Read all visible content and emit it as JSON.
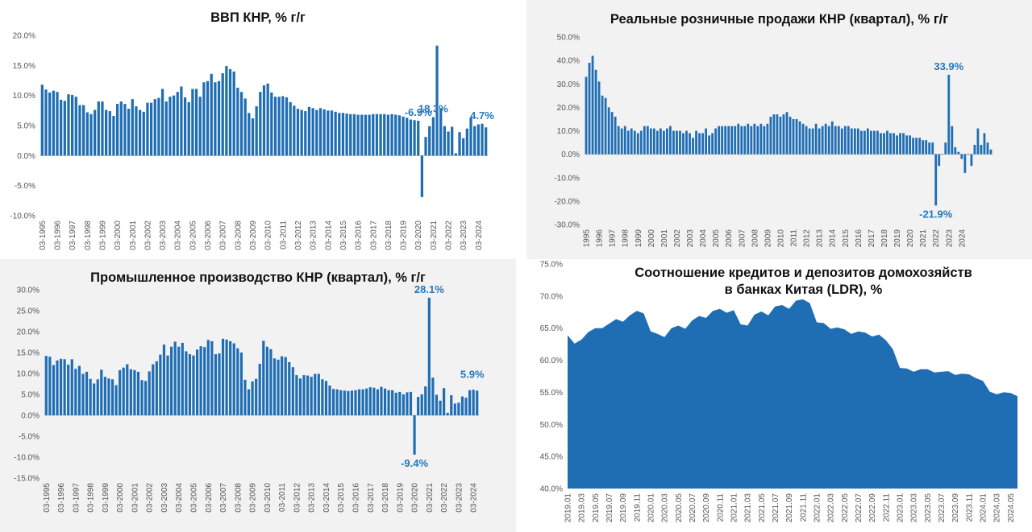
{
  "chart_data": [
    {
      "id": "gdp",
      "type": "bar",
      "title": "ВВП КНР, % г/г",
      "color": "#1f6eb4",
      "ylim": [
        -10,
        20
      ],
      "yticks": [
        -10,
        -5,
        0,
        5,
        10,
        15,
        20
      ],
      "ytick_format": "percent1",
      "xtick_labels": [
        "03-1995",
        "03-1996",
        "03-1997",
        "03-1998",
        "03-1999",
        "03-2000",
        "03-2001",
        "03-2002",
        "03-2003",
        "03-2004",
        "03-2005",
        "03-2006",
        "03-2007",
        "03-2008",
        "03-2009",
        "03-2010",
        "03-2011",
        "03-2012",
        "03-2013",
        "03-2014",
        "03-2015",
        "03-2016",
        "03-2017",
        "03-2018",
        "03-2019",
        "03-2020",
        "03-2021",
        "03-2022",
        "03-2023",
        "03-2024"
      ],
      "values": [
        11.8,
        11.0,
        10.5,
        10.8,
        10.6,
        9.3,
        9.1,
        10.2,
        10.1,
        9.8,
        8.4,
        8.4,
        7.2,
        6.9,
        7.6,
        9.0,
        9.0,
        7.6,
        7.4,
        6.6,
        8.6,
        9.0,
        8.6,
        7.8,
        9.4,
        8.2,
        7.6,
        7.3,
        8.8,
        8.8,
        9.4,
        9.6,
        11.1,
        9.0,
        9.8,
        10.0,
        10.6,
        11.5,
        9.7,
        8.9,
        11.1,
        11.1,
        9.8,
        12.2,
        12.4,
        13.6,
        12.2,
        12.4,
        13.7,
        14.9,
        14.4,
        14.0,
        11.3,
        10.6,
        9.5,
        7.1,
        6.2,
        8.2,
        10.6,
        11.7,
        12.0,
        10.5,
        9.8,
        9.8,
        9.9,
        9.7,
        8.9,
        8.3,
        7.8,
        7.6,
        7.4,
        8.1,
        7.9,
        7.6,
        7.9,
        7.7,
        7.5,
        7.5,
        7.3,
        7.1,
        7.1,
        7.0,
        6.9,
        6.9,
        6.8,
        6.8,
        6.8,
        6.8,
        6.9,
        6.9,
        6.9,
        6.9,
        6.8,
        6.9,
        6.8,
        6.7,
        6.5,
        6.3,
        6.0,
        5.9,
        5.8,
        -6.9,
        3.1,
        4.9,
        6.4,
        18.3,
        7.9,
        4.9,
        4.0,
        4.8,
        0.4,
        3.9,
        2.9,
        4.5,
        6.3,
        4.9,
        5.2,
        5.3,
        4.7
      ],
      "annotations": [
        {
          "text": "18.3%",
          "x_index": 104
        },
        {
          "text": "-6.9%",
          "x_index": 100
        },
        {
          "text": "4.7%",
          "x_index": 117
        }
      ]
    },
    {
      "id": "retail",
      "type": "bar",
      "title": "Реальные розничные продажи КНР (квартал), % г/г",
      "color": "#1f6eb4",
      "ylim": [
        -30,
        50
      ],
      "yticks": [
        -30,
        -20,
        -10,
        0,
        10,
        20,
        30,
        40,
        50
      ],
      "ytick_format": "percent1",
      "xtick_labels": [
        "1995",
        "1996",
        "1997",
        "1998",
        "1999",
        "2000",
        "2001",
        "2002",
        "2003",
        "2004",
        "2005",
        "2006",
        "2007",
        "2008",
        "2009",
        "2010",
        "2011",
        "2012",
        "2013",
        "2014",
        "2015",
        "2016",
        "2017",
        "2018",
        "2019",
        "2020",
        "2021",
        "2022",
        "2023",
        "2024"
      ],
      "values": [
        33,
        39,
        42,
        36,
        31,
        25,
        24,
        20,
        18,
        16,
        12,
        11,
        12,
        10,
        11,
        10,
        9,
        10,
        12,
        12,
        11,
        11,
        10,
        11,
        10,
        11,
        12,
        10,
        10,
        10,
        9,
        10,
        9,
        7,
        10,
        9,
        9,
        11,
        8,
        9,
        11,
        12,
        12,
        12,
        12,
        12,
        12,
        13,
        12,
        12,
        13,
        12,
        13,
        12,
        13,
        12,
        13,
        16,
        17,
        17,
        16,
        17,
        18,
        16,
        15,
        15,
        14,
        13,
        12,
        11,
        11,
        13,
        11,
        12,
        13,
        12,
        14,
        12,
        12,
        11,
        12,
        12,
        11,
        11,
        11,
        10,
        10,
        11,
        10,
        10,
        10,
        9,
        9,
        10,
        9,
        9,
        8,
        9,
        9,
        8,
        8,
        7,
        7,
        7,
        6,
        6,
        5,
        5,
        -21.9,
        -5,
        0,
        5,
        33.9,
        12,
        3,
        1,
        -2,
        -8,
        0,
        -5,
        4,
        11,
        4,
        9,
        5,
        2
      ],
      "annotations": [
        {
          "text": "33.9%",
          "x_index": 112
        },
        {
          "text": "-21.9%",
          "x_index": 108
        }
      ]
    },
    {
      "id": "industry",
      "type": "bar",
      "title": "Промышленное производство КНР (квартал), % г/г",
      "color": "#1f6eb4",
      "ylim": [
        -15,
        30
      ],
      "yticks": [
        -15,
        -10,
        -5,
        0,
        5,
        10,
        15,
        20,
        25,
        30
      ],
      "ytick_format": "percent1",
      "xtick_labels": [
        "03-1995",
        "03-1996",
        "03-1997",
        "03-1998",
        "03-1999",
        "03-2000",
        "03-2001",
        "03-2002",
        "03-2003",
        "03-2004",
        "03-2005",
        "03-2006",
        "03-2007",
        "03-2008",
        "03-2009",
        "03-2010",
        "03-2011",
        "03-2012",
        "03-2013",
        "03-2014",
        "03-2015",
        "03-2016",
        "03-2017",
        "03-2018",
        "03-2019",
        "03-2020",
        "03-2021",
        "03-2022",
        "03-2023",
        "03-2024"
      ],
      "values": [
        14.2,
        14.0,
        12.0,
        13.1,
        13.5,
        13.4,
        12.1,
        13.4,
        11.1,
        11.8,
        9.9,
        10.4,
        8.7,
        7.6,
        8.6,
        10.9,
        9.2,
        8.8,
        8.6,
        7.2,
        10.8,
        11.4,
        12.2,
        11.0,
        10.8,
        10.4,
        8.4,
        8.2,
        10.5,
        12.2,
        12.9,
        14.5,
        16.9,
        14.3,
        16.4,
        17.6,
        16.4,
        17.3,
        15.3,
        14.6,
        14.3,
        15.7,
        16.5,
        16.3,
        18.0,
        17.7,
        14.6,
        14.8,
        18.3,
        18.1,
        17.7,
        17.2,
        16.0,
        15.0,
        8.5,
        6.2,
        8.1,
        8.7,
        12.3,
        17.8,
        16.4,
        15.8,
        13.6,
        13.3,
        14.1,
        13.9,
        12.7,
        11.5,
        9.6,
        8.8,
        9.6,
        9.5,
        9.2,
        9.9,
        9.9,
        8.6,
        8.2,
        7.1,
        6.3,
        6.2,
        6.0,
        5.9,
        5.8,
        5.9,
        6.0,
        6.2,
        6.2,
        6.4,
        6.7,
        6.6,
        6.2,
        6.8,
        6.4,
        6.0,
        6.0,
        5.4,
        5.6,
        5.0,
        5.5,
        5.6,
        -9.4,
        4.4,
        5.0,
        6.9,
        28.1,
        9.0,
        4.9,
        3.5,
        6.5,
        0.6,
        4.8,
        2.8,
        3.0,
        4.5,
        4.2,
        6.0,
        6.1,
        5.9
      ],
      "annotations": [
        {
          "text": "28.1%",
          "x_index": 104
        },
        {
          "text": "-9.4%",
          "x_index": 100
        },
        {
          "text": "5.9%",
          "x_index": 117
        }
      ]
    },
    {
      "id": "ldr",
      "type": "area",
      "title": "Соотношение кредитов и депозитов домохозяйств\nв банках Китая (LDR), %",
      "color": "#1f6eb4",
      "ylim": [
        40,
        75
      ],
      "yticks": [
        40,
        45,
        50,
        55,
        60,
        65,
        70,
        75
      ],
      "ytick_format": "percent1",
      "x": [
        "2019.01",
        "2019.02",
        "2019.03",
        "2019.04",
        "2019.05",
        "2019.06",
        "2019.07",
        "2019.08",
        "2019.09",
        "2019.10",
        "2019.11",
        "2019.12",
        "2020.01",
        "2020.02",
        "2020.03",
        "2020.04",
        "2020.05",
        "2020.06",
        "2020.07",
        "2020.08",
        "2020.09",
        "2020.10",
        "2020.11",
        "2020.12",
        "2021.01",
        "2021.02",
        "2021.03",
        "2021.04",
        "2021.05",
        "2021.06",
        "2021.07",
        "2021.08",
        "2021.09",
        "2021.10",
        "2021.11",
        "2021.12",
        "2022.01",
        "2022.02",
        "2022.03",
        "2022.04",
        "2022.05",
        "2022.06",
        "2022.07",
        "2022.08",
        "2022.09",
        "2022.10",
        "2022.11",
        "2022.12",
        "2023.01",
        "2023.02",
        "2023.03",
        "2023.04",
        "2023.05",
        "2023.06",
        "2023.07",
        "2023.08",
        "2023.09",
        "2023.10",
        "2023.11",
        "2023.12",
        "2024.01",
        "2024.02",
        "2024.03",
        "2024.04",
        "2024.05",
        "2024.06"
      ],
      "xtick_labels": [
        "2019.01",
        "2019.03",
        "2019.05",
        "2019.07",
        "2019.09",
        "2019.11",
        "2020.01",
        "2020.03",
        "2020.05",
        "2020.07",
        "2020.09",
        "2020.11",
        "2021.01",
        "2021.03",
        "2021.05",
        "2021.07",
        "2021.09",
        "2021.11",
        "2022.01",
        "2022.03",
        "2022.05",
        "2022.07",
        "2022.09",
        "2022.11",
        "2023.01",
        "2023.03",
        "2023.05",
        "2023.07",
        "2023.09",
        "2023.11",
        "2024.01",
        "2024.03",
        "2024.05"
      ],
      "values": [
        63.9,
        62.6,
        63.2,
        64.4,
        65.0,
        65.0,
        65.7,
        66.4,
        66.0,
        67.0,
        67.7,
        67.3,
        64.5,
        64.1,
        63.6,
        65.0,
        65.4,
        64.9,
        66.2,
        66.9,
        66.6,
        67.7,
        68.0,
        67.4,
        67.8,
        65.6,
        65.4,
        67.1,
        67.6,
        67.0,
        68.4,
        68.6,
        68.0,
        69.3,
        69.5,
        68.9,
        65.9,
        65.8,
        64.9,
        65.1,
        64.8,
        64.1,
        64.5,
        64.3,
        63.7,
        64.0,
        63.1,
        61.7,
        58.8,
        58.7,
        58.2,
        58.6,
        58.6,
        58.1,
        58.2,
        58.3,
        57.7,
        57.9,
        57.8,
        57.2,
        56.8,
        55.1,
        54.7,
        55.0,
        54.9,
        54.4
      ]
    }
  ]
}
